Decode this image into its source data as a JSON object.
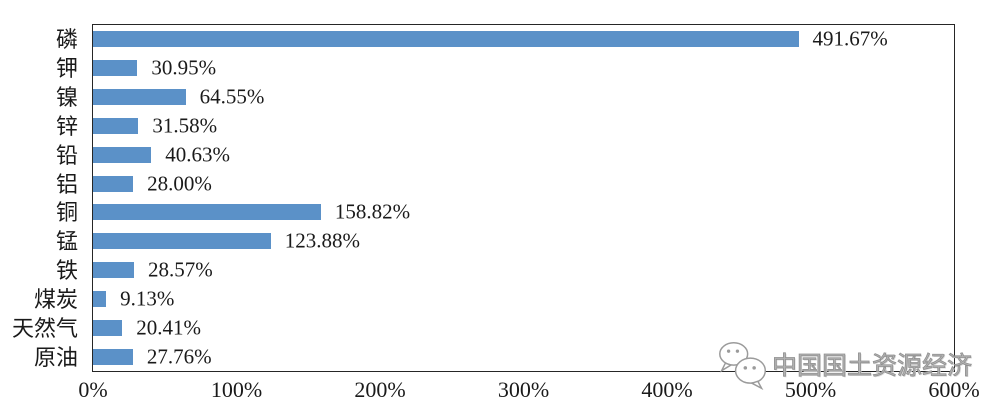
{
  "watermark": {
    "label": "中国国土资源经济",
    "icon": "wechat-icon",
    "color": "#9b9b9b"
  },
  "chart_data": {
    "type": "bar",
    "orientation": "horizontal",
    "title": "",
    "xlabel": "",
    "ylabel": "",
    "categories": [
      "磷",
      "钾",
      "镍",
      "锌",
      "铅",
      "铝",
      "铜",
      "锰",
      "铁",
      "煤炭",
      "天然气",
      "原油"
    ],
    "values": [
      491.67,
      30.95,
      64.55,
      31.58,
      40.63,
      28.0,
      158.82,
      123.88,
      28.57,
      9.13,
      20.41,
      27.76
    ],
    "value_labels": [
      "491.67%",
      "30.95%",
      "64.55%",
      "31.58%",
      "40.63%",
      "28.00%",
      "158.82%",
      "123.88%",
      "28.57%",
      "9.13%",
      "20.41%",
      "27.76%"
    ],
    "x_ticks": [
      "0%",
      "100%",
      "200%",
      "300%",
      "400%",
      "500%",
      "600%"
    ],
    "xlim": [
      0,
      600
    ],
    "bar_color": "#5B91C8",
    "grid": false,
    "legend": null
  }
}
